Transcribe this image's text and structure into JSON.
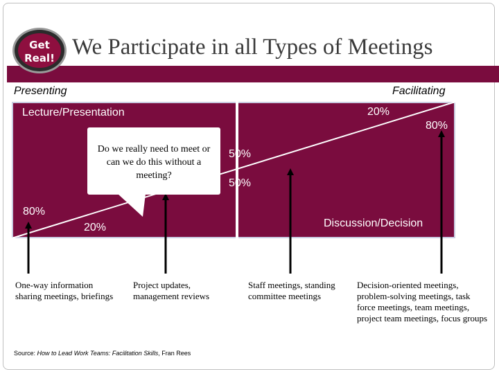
{
  "title": "We Participate in all Types of Meetings",
  "badge": {
    "line1": "Get",
    "line2": "Real!"
  },
  "axis": {
    "left": "Presenting",
    "right": "Facilitating"
  },
  "panel": {
    "top_label": "Lecture/Presentation",
    "bottom_label": "Discussion/Decision",
    "pct_top_right": "20%",
    "pct_right_edge": "80%",
    "pct_mid_top": "50%",
    "pct_mid_bottom": "50%",
    "pct_left": "80%",
    "pct_bottom_left": "20%"
  },
  "callout": "Do we really need to meet or can we do this without a meeting?",
  "examples": [
    "One-way information sharing meetings, briefings",
    "Project updates, management reviews",
    "Staff meetings, standing committee meetings",
    "Decision-oriented meetings, problem-solving meetings, task force meetings, team meetings, project team meetings, focus groups"
  ],
  "source": {
    "prefix": "Source: ",
    "book": "How to Lead Work Teams:  Facilitation Skills",
    "author": ", Fran Rees"
  },
  "colors": {
    "accent": "#7a0c3e",
    "panel_border": "#c9cbe0"
  }
}
